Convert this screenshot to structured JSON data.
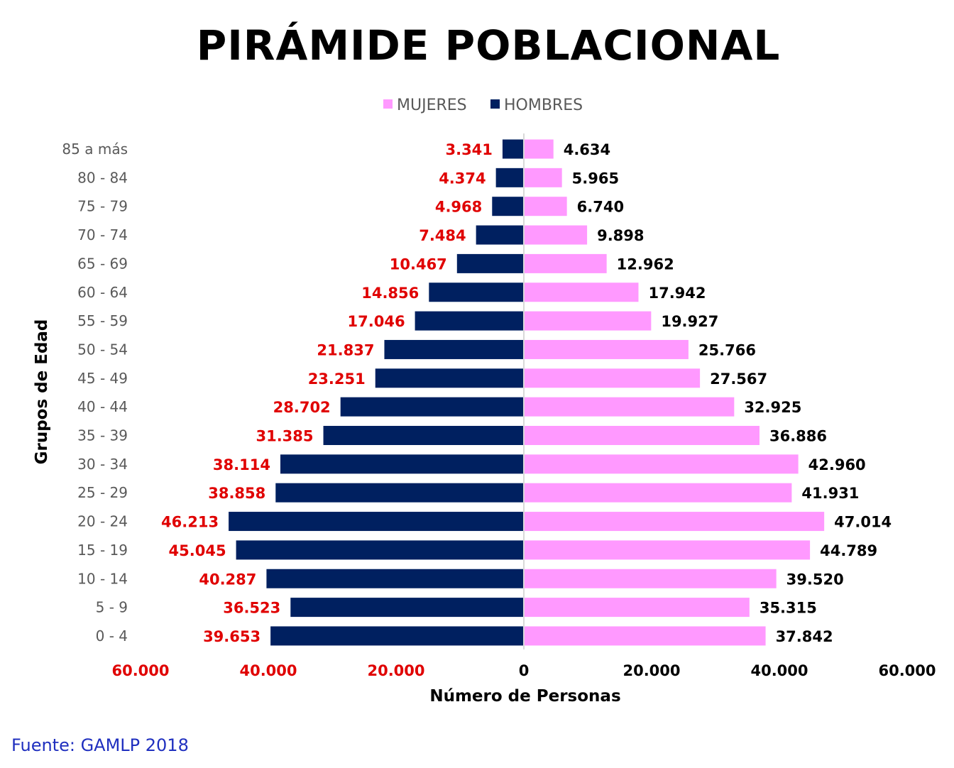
{
  "chart_data": {
    "type": "bar",
    "orientation": "horizontal-pyramid",
    "title": "PIRÁMIDE POBLACIONAL",
    "xlabel": "Número de Personas",
    "ylabel": "Grupos de Edad",
    "xlim": [
      -60000,
      60000
    ],
    "x_ticks": [
      -60000,
      -40000,
      -20000,
      0,
      20000,
      40000,
      60000
    ],
    "x_tick_labels": [
      "60.000",
      "40.000",
      "20.000",
      "0",
      "20.000",
      "40.000",
      "60.000"
    ],
    "legend_position": "top",
    "grid": false,
    "categories": [
      "85 a más",
      "80 - 84",
      "75 - 79",
      "70 - 74",
      "65 - 69",
      "60 - 64",
      "55 - 59",
      "50 - 54",
      "45 - 49",
      "40 - 44",
      "35 - 39",
      "30 - 34",
      "25 - 29",
      "20 - 24",
      "15 - 19",
      "10 - 14",
      "5 - 9",
      "0 - 4"
    ],
    "series": [
      {
        "name": "MUJERES",
        "side": "right",
        "color": "#ff99ff",
        "label_color": "#000000",
        "values": [
          4634,
          5965,
          6740,
          9898,
          12962,
          17942,
          19927,
          25766,
          27567,
          32925,
          36886,
          42960,
          41931,
          47014,
          44789,
          39520,
          35315,
          37842
        ],
        "labels": [
          "4.634",
          "5.965",
          "6.740",
          "9.898",
          "12.962",
          "17.942",
          "19.927",
          "25.766",
          "27.567",
          "32.925",
          "36.886",
          "42.960",
          "41.931",
          "47.014",
          "44.789",
          "39.520",
          "35.315",
          "37.842"
        ]
      },
      {
        "name": "HOMBRES",
        "side": "left",
        "color": "#002060",
        "label_color": "#e00000",
        "values": [
          3341,
          4374,
          4968,
          7484,
          10467,
          14856,
          17046,
          21837,
          23251,
          28702,
          31385,
          38114,
          38858,
          46213,
          45045,
          40287,
          36523,
          39653
        ],
        "labels": [
          "3.341",
          "4.374",
          "4.968",
          "7.484",
          "10.467",
          "14.856",
          "17.046",
          "21.837",
          "23.251",
          "28.702",
          "31.385",
          "38.114",
          "38.858",
          "46.213",
          "45.045",
          "40.287",
          "36.523",
          "39.653"
        ]
      }
    ],
    "tick_colors": {
      "left": "#e00000",
      "zero": "#000000",
      "right": "#000000"
    }
  },
  "source_note": "Fuente: GAMLP 2018"
}
